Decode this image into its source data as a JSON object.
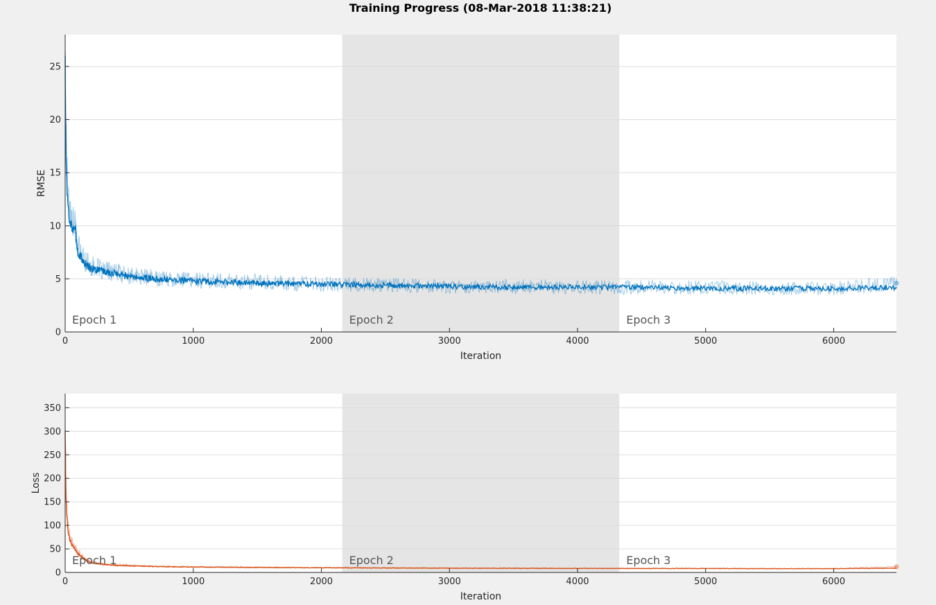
{
  "figure": {
    "title": "Training Progress (08-Mar-2018 11:38:21)"
  },
  "colors": {
    "background": "#f0f0f0",
    "plot_background": "#ffffff",
    "epoch_shade": "#e5e5e5",
    "grid": "#dcdcdc",
    "axis": "#262626",
    "rmse_series": "#0072bd",
    "loss_series": "#d95319"
  },
  "chart_data": [
    {
      "type": "line",
      "title": "",
      "xlabel": "Iteration",
      "ylabel": "RMSE",
      "xlim": [
        0,
        6490
      ],
      "ylim": [
        0,
        28
      ],
      "x_ticks": [
        0,
        1000,
        2000,
        3000,
        4000,
        5000,
        6000
      ],
      "y_ticks": [
        0,
        5,
        10,
        15,
        20,
        25
      ],
      "grid": "y",
      "epochs": [
        {
          "label": "Epoch 1",
          "start": 0,
          "end": 2163,
          "shaded": false
        },
        {
          "label": "Epoch 2",
          "start": 2163,
          "end": 4326,
          "shaded": true
        },
        {
          "label": "Epoch 3",
          "start": 4326,
          "end": 6490,
          "shaded": false
        }
      ],
      "series": [
        {
          "role": "raw",
          "x": [
            0,
            5,
            10,
            20,
            30,
            50,
            80,
            100,
            150,
            200,
            300,
            400,
            500,
            700,
            1000,
            1500,
            2000,
            2500,
            3000,
            3500,
            4000,
            4500,
            5000,
            5500,
            6000,
            6490
          ],
          "values": [
            27,
            21,
            17,
            14,
            12,
            10.5,
            9.8,
            8,
            6.8,
            6.2,
            5.8,
            5.6,
            5.3,
            5.1,
            4.9,
            4.7,
            4.5,
            4.4,
            4.3,
            4.3,
            4.2,
            4.2,
            4.2,
            4.1,
            4.1,
            4.6
          ]
        },
        {
          "role": "smoothed",
          "x": [
            0,
            5,
            10,
            20,
            30,
            50,
            80,
            100,
            150,
            200,
            300,
            400,
            500,
            700,
            1000,
            1500,
            2000,
            2500,
            3000,
            3500,
            4000,
            4500,
            5000,
            5500,
            6000,
            6490
          ],
          "values": [
            25,
            19,
            15,
            12,
            11,
            10,
            9.5,
            7.5,
            6.5,
            6,
            5.7,
            5.5,
            5.2,
            5,
            4.8,
            4.6,
            4.5,
            4.4,
            4.3,
            4.2,
            4.2,
            4.2,
            4.1,
            4.1,
            4.1,
            4.2
          ]
        }
      ]
    },
    {
      "type": "line",
      "title": "",
      "xlabel": "Iteration",
      "ylabel": "Loss",
      "xlim": [
        0,
        6490
      ],
      "ylim": [
        0,
        380
      ],
      "x_ticks": [
        0,
        1000,
        2000,
        3000,
        4000,
        5000,
        6000
      ],
      "y_ticks": [
        0,
        50,
        100,
        150,
        200,
        250,
        300,
        350
      ],
      "grid": "y",
      "epochs": [
        {
          "label": "Epoch 1",
          "start": 0,
          "end": 2163,
          "shaded": false
        },
        {
          "label": "Epoch 2",
          "start": 2163,
          "end": 4326,
          "shaded": true
        },
        {
          "label": "Epoch 3",
          "start": 4326,
          "end": 6490,
          "shaded": false
        }
      ],
      "series": [
        {
          "role": "raw",
          "x": [
            0,
            3,
            6,
            10,
            20,
            30,
            50,
            80,
            100,
            150,
            200,
            300,
            400,
            500,
            700,
            1000,
            1500,
            2000,
            2500,
            3000,
            3500,
            4000,
            4500,
            5000,
            5500,
            6000,
            6490
          ],
          "values": [
            360,
            280,
            200,
            150,
            110,
            85,
            70,
            55,
            45,
            30,
            22,
            18,
            16,
            15,
            13,
            12,
            11,
            10,
            9.5,
            9,
            9,
            8.5,
            8.5,
            8.5,
            8,
            8,
            12
          ]
        },
        {
          "role": "smoothed",
          "x": [
            0,
            3,
            6,
            10,
            20,
            30,
            50,
            80,
            100,
            150,
            200,
            300,
            400,
            500,
            700,
            1000,
            1500,
            2000,
            2500,
            3000,
            3500,
            4000,
            4500,
            5000,
            5500,
            6000,
            6490
          ],
          "values": [
            300,
            230,
            170,
            130,
            95,
            75,
            60,
            48,
            40,
            28,
            21,
            17,
            15,
            14,
            12.5,
            11.5,
            10.5,
            10,
            9.5,
            9,
            8.8,
            8.5,
            8.4,
            8.3,
            8,
            8,
            9
          ]
        }
      ]
    }
  ]
}
